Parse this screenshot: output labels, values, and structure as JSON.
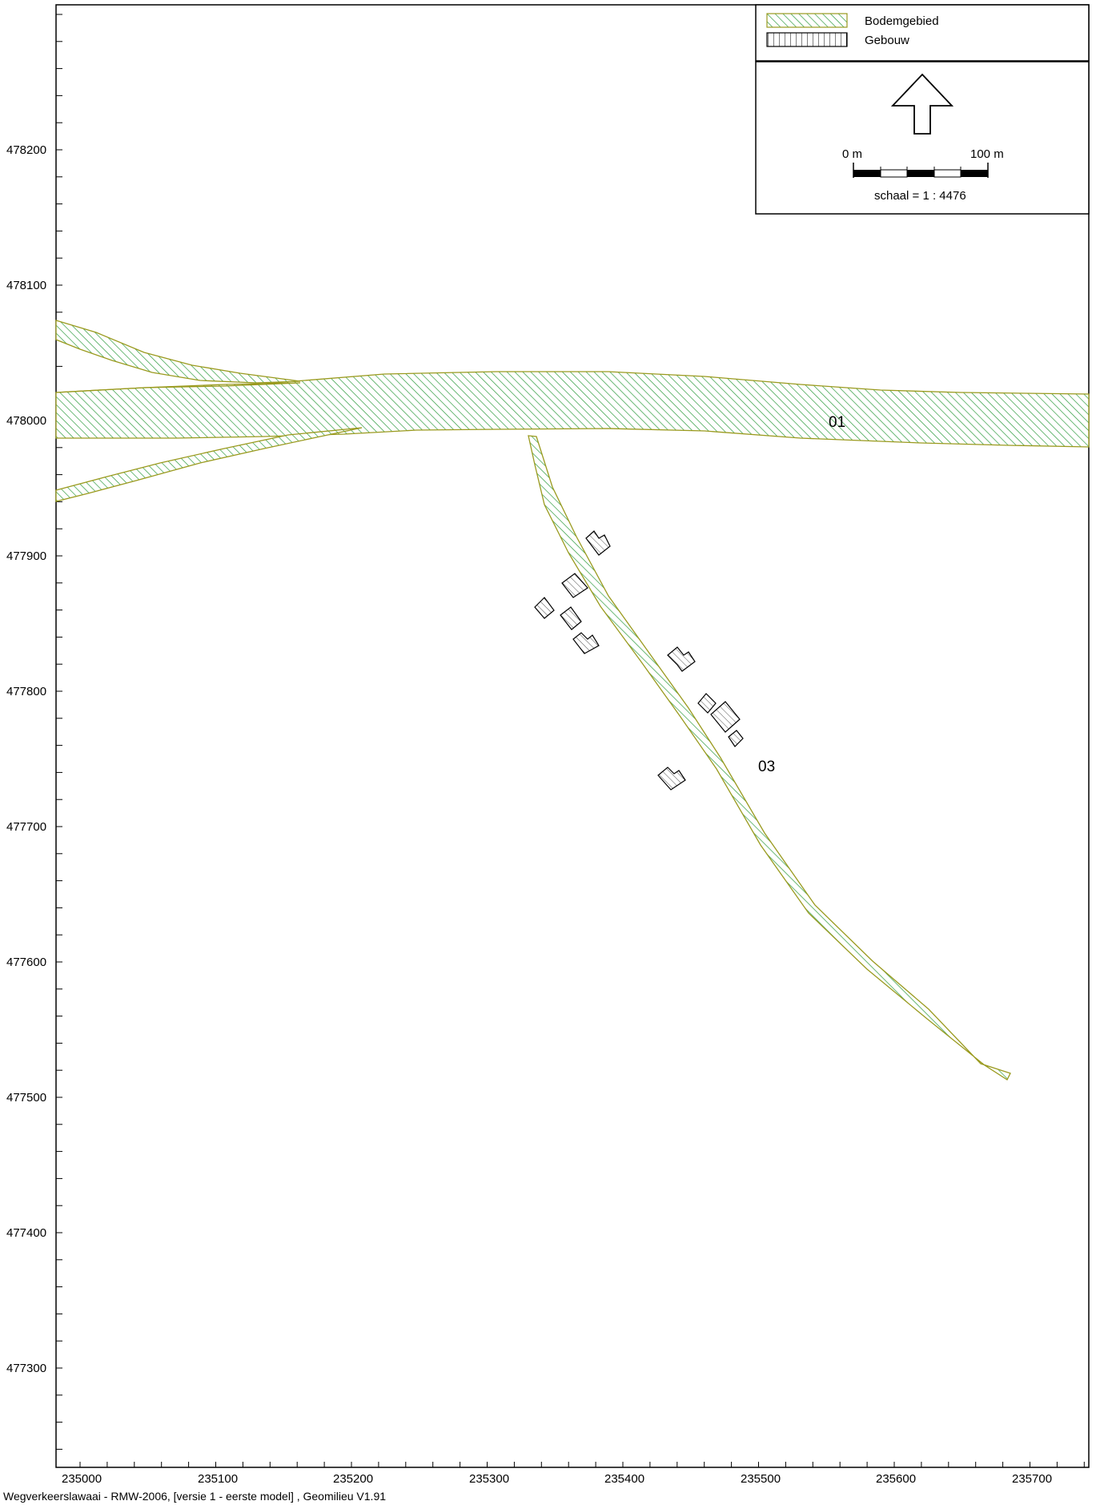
{
  "legend": {
    "items": [
      {
        "label": "Bodemgebied",
        "pattern": "diagonal-hatch",
        "color": "#2e9b3e"
      },
      {
        "label": "Gebouw",
        "pattern": "vertical-hatch",
        "color": "#000000"
      }
    ]
  },
  "scale_bar": {
    "start_label": "0 m",
    "end_label": "100 m",
    "ratio_text": "schaal = 1 : 4476"
  },
  "north_arrow": {
    "icon": "north-arrow-icon"
  },
  "axes": {
    "x_labels": [
      "235000",
      "235100",
      "235200",
      "235300",
      "235400",
      "235500",
      "235600",
      "235700"
    ],
    "y_labels": [
      "478200",
      "478100",
      "478000",
      "477900",
      "477800",
      "477700",
      "477600",
      "477500",
      "477400",
      "477300"
    ]
  },
  "areas": [
    {
      "label": "01"
    },
    {
      "label": "03"
    }
  ],
  "colors": {
    "hatch_green": "#2e9b3e",
    "outline_olive": "#9a9a1e"
  },
  "footer": {
    "text": "Wegverkeerslawaai - RMW-2006, [versie 1 - eerste model] , Geomilieu V1.91"
  }
}
